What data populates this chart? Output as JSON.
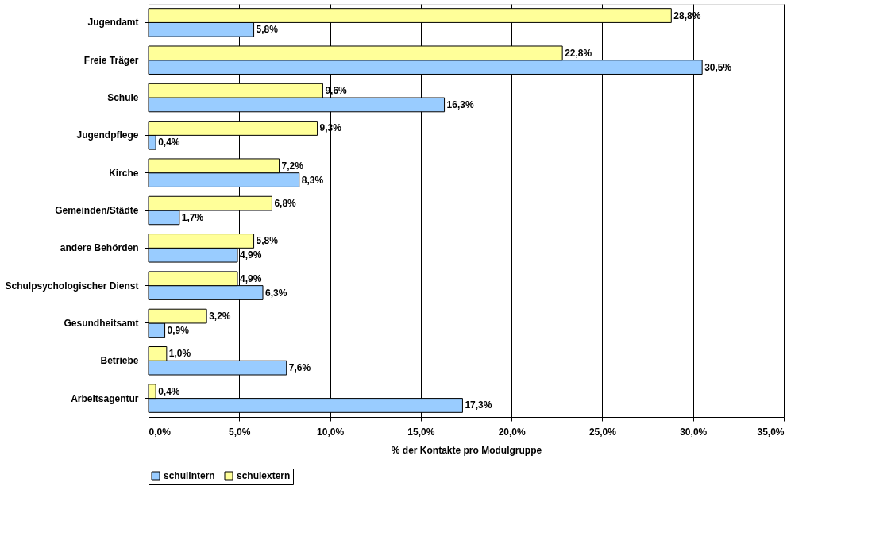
{
  "chart_data": {
    "type": "bar",
    "orientation": "horizontal",
    "xlabel": "% der Kontakte pro Modulgruppe",
    "categories": [
      "Jugendamt",
      "Freie Träger",
      "Schule",
      "Jugendpflege",
      "Kirche",
      "Gemeinden/Städte",
      "andere Behörden",
      "Schulpsychologischer Dienst",
      "Gesundheitsamt",
      "Betriebe",
      "Arbeitsagentur"
    ],
    "series": [
      {
        "name": "schulintern",
        "color": "#99ccff",
        "values": [
          5.8,
          30.5,
          16.3,
          0.4,
          8.3,
          1.7,
          4.9,
          6.3,
          0.9,
          7.6,
          17.3
        ],
        "value_labels": [
          "5,8%",
          "30,5%",
          "16,3%",
          "0,4%",
          "8,3%",
          "1,7%",
          "4,9%",
          "6,3%",
          "0,9%",
          "7,6%",
          "17,3%"
        ]
      },
      {
        "name": "schulextern",
        "color": "#ffff99",
        "values": [
          28.8,
          22.8,
          9.6,
          9.3,
          7.2,
          6.8,
          5.8,
          4.9,
          3.2,
          1.0,
          0.4
        ],
        "value_labels": [
          "28,8%",
          "22,8%",
          "9,6%",
          "9,3%",
          "7,2%",
          "6,8%",
          "5,8%",
          "4,9%",
          "3,2%",
          "1,0%",
          "0,4%"
        ]
      }
    ],
    "xlim": [
      0,
      35
    ],
    "xticks": [
      {
        "value": 0,
        "label": "0,0%"
      },
      {
        "value": 5,
        "label": "5,0%"
      },
      {
        "value": 10,
        "label": "10,0%"
      },
      {
        "value": 15,
        "label": "15,0%"
      },
      {
        "value": 20,
        "label": "20,0%"
      },
      {
        "value": 25,
        "label": "25,0%"
      },
      {
        "value": 30,
        "label": "30,0%"
      },
      {
        "value": 35,
        "label": "35,0%"
      }
    ],
    "grid": "x",
    "legend": "bottom"
  }
}
